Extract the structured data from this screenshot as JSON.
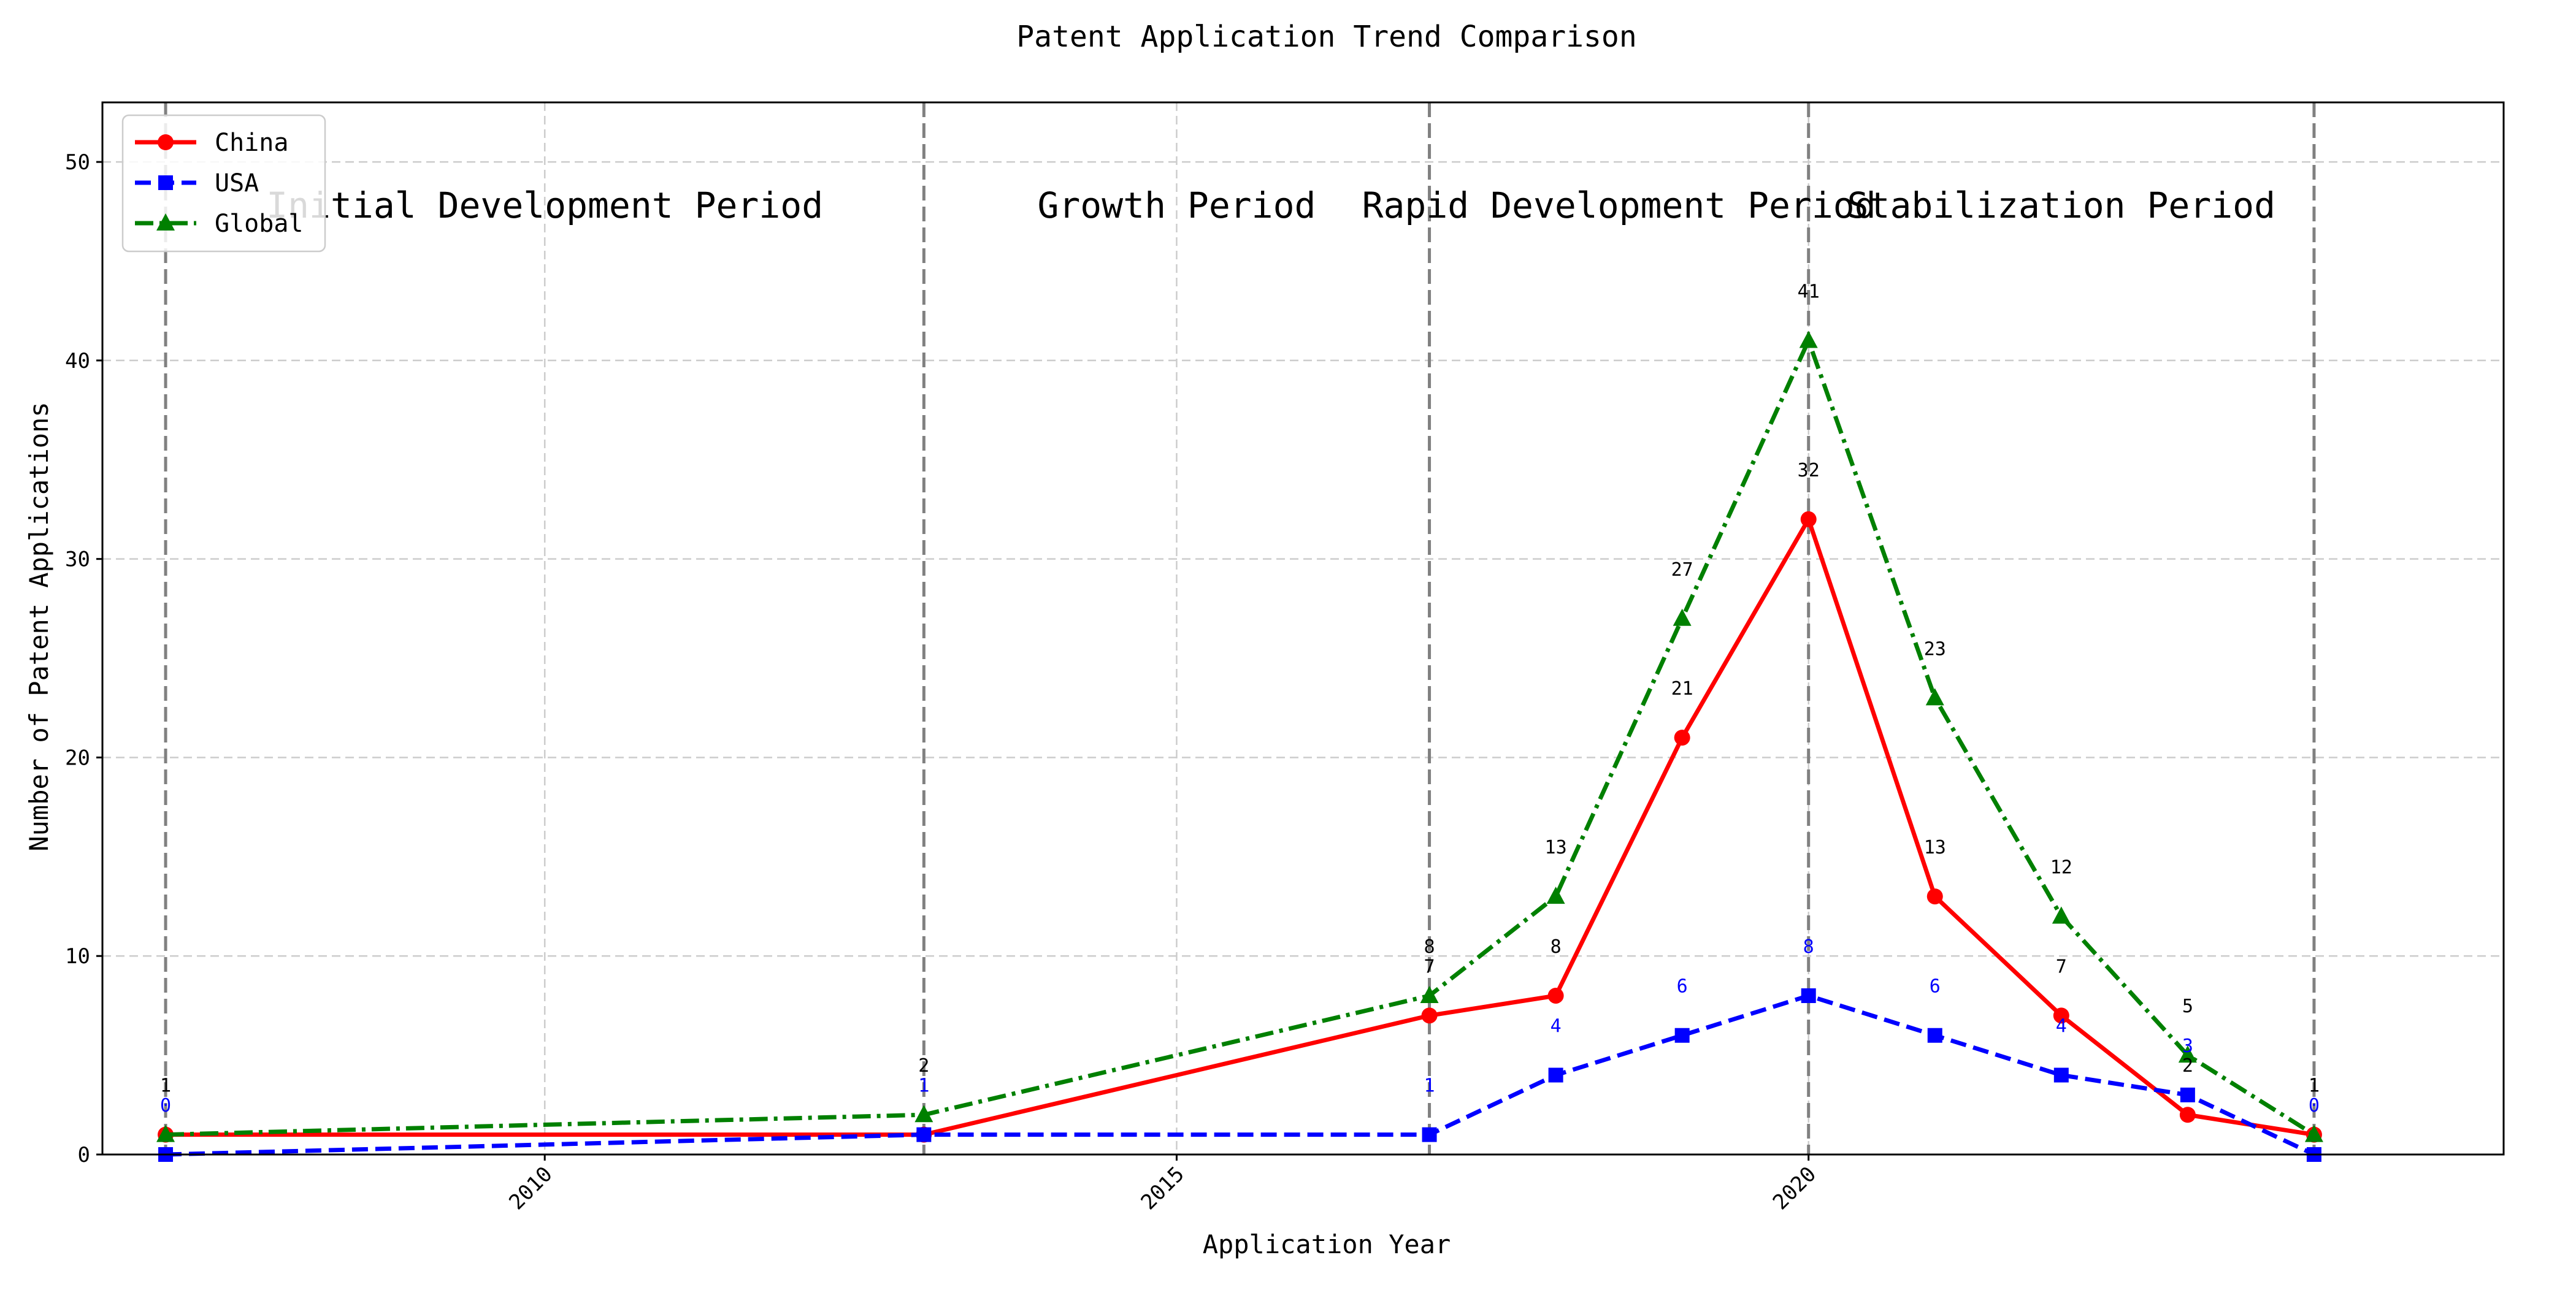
{
  "chart_data": {
    "type": "line",
    "title": "Patent Application Trend Comparison",
    "xlabel": "Application Year",
    "ylabel": "Number of Patent Applications",
    "xlim": [
      2006.5,
      2025.5
    ],
    "ylim": [
      0,
      53
    ],
    "x_ticks": [
      2010,
      2015,
      2020
    ],
    "y_ticks": [
      0,
      10,
      20,
      30,
      40,
      50
    ],
    "grid": true,
    "legend_position": "top-left",
    "periods": [
      {
        "label": "Initial Development Period",
        "boundary": 2007
      },
      {
        "label": "Growth Period",
        "boundary": 2013
      },
      {
        "label": "Rapid Development Period",
        "boundary": 2017
      },
      {
        "label": "Stabilization Period",
        "boundary": 2020
      }
    ],
    "period_end_boundary": 2024,
    "series": [
      {
        "name": "China",
        "color": "#ff0000",
        "marker": "circle",
        "linestyle": "solid",
        "x": [
          2007,
          2013,
          2017,
          2018,
          2019,
          2020,
          2021,
          2022,
          2023,
          2024
        ],
        "values": [
          1,
          1,
          7,
          8,
          21,
          32,
          13,
          7,
          2,
          1
        ]
      },
      {
        "name": "USA",
        "color": "#0000ff",
        "marker": "square",
        "linestyle": "dashed",
        "x": [
          2007,
          2013,
          2017,
          2018,
          2019,
          2020,
          2021,
          2022,
          2023,
          2024
        ],
        "values": [
          0,
          1,
          1,
          4,
          6,
          8,
          6,
          4,
          3,
          0
        ]
      },
      {
        "name": "Global",
        "color": "#008000",
        "marker": "triangle",
        "linestyle": "dashdot",
        "x": [
          2007,
          2013,
          2017,
          2018,
          2019,
          2020,
          2021,
          2022,
          2023,
          2024
        ],
        "values": [
          1,
          2,
          8,
          13,
          27,
          41,
          23,
          12,
          5,
          1
        ]
      }
    ]
  }
}
